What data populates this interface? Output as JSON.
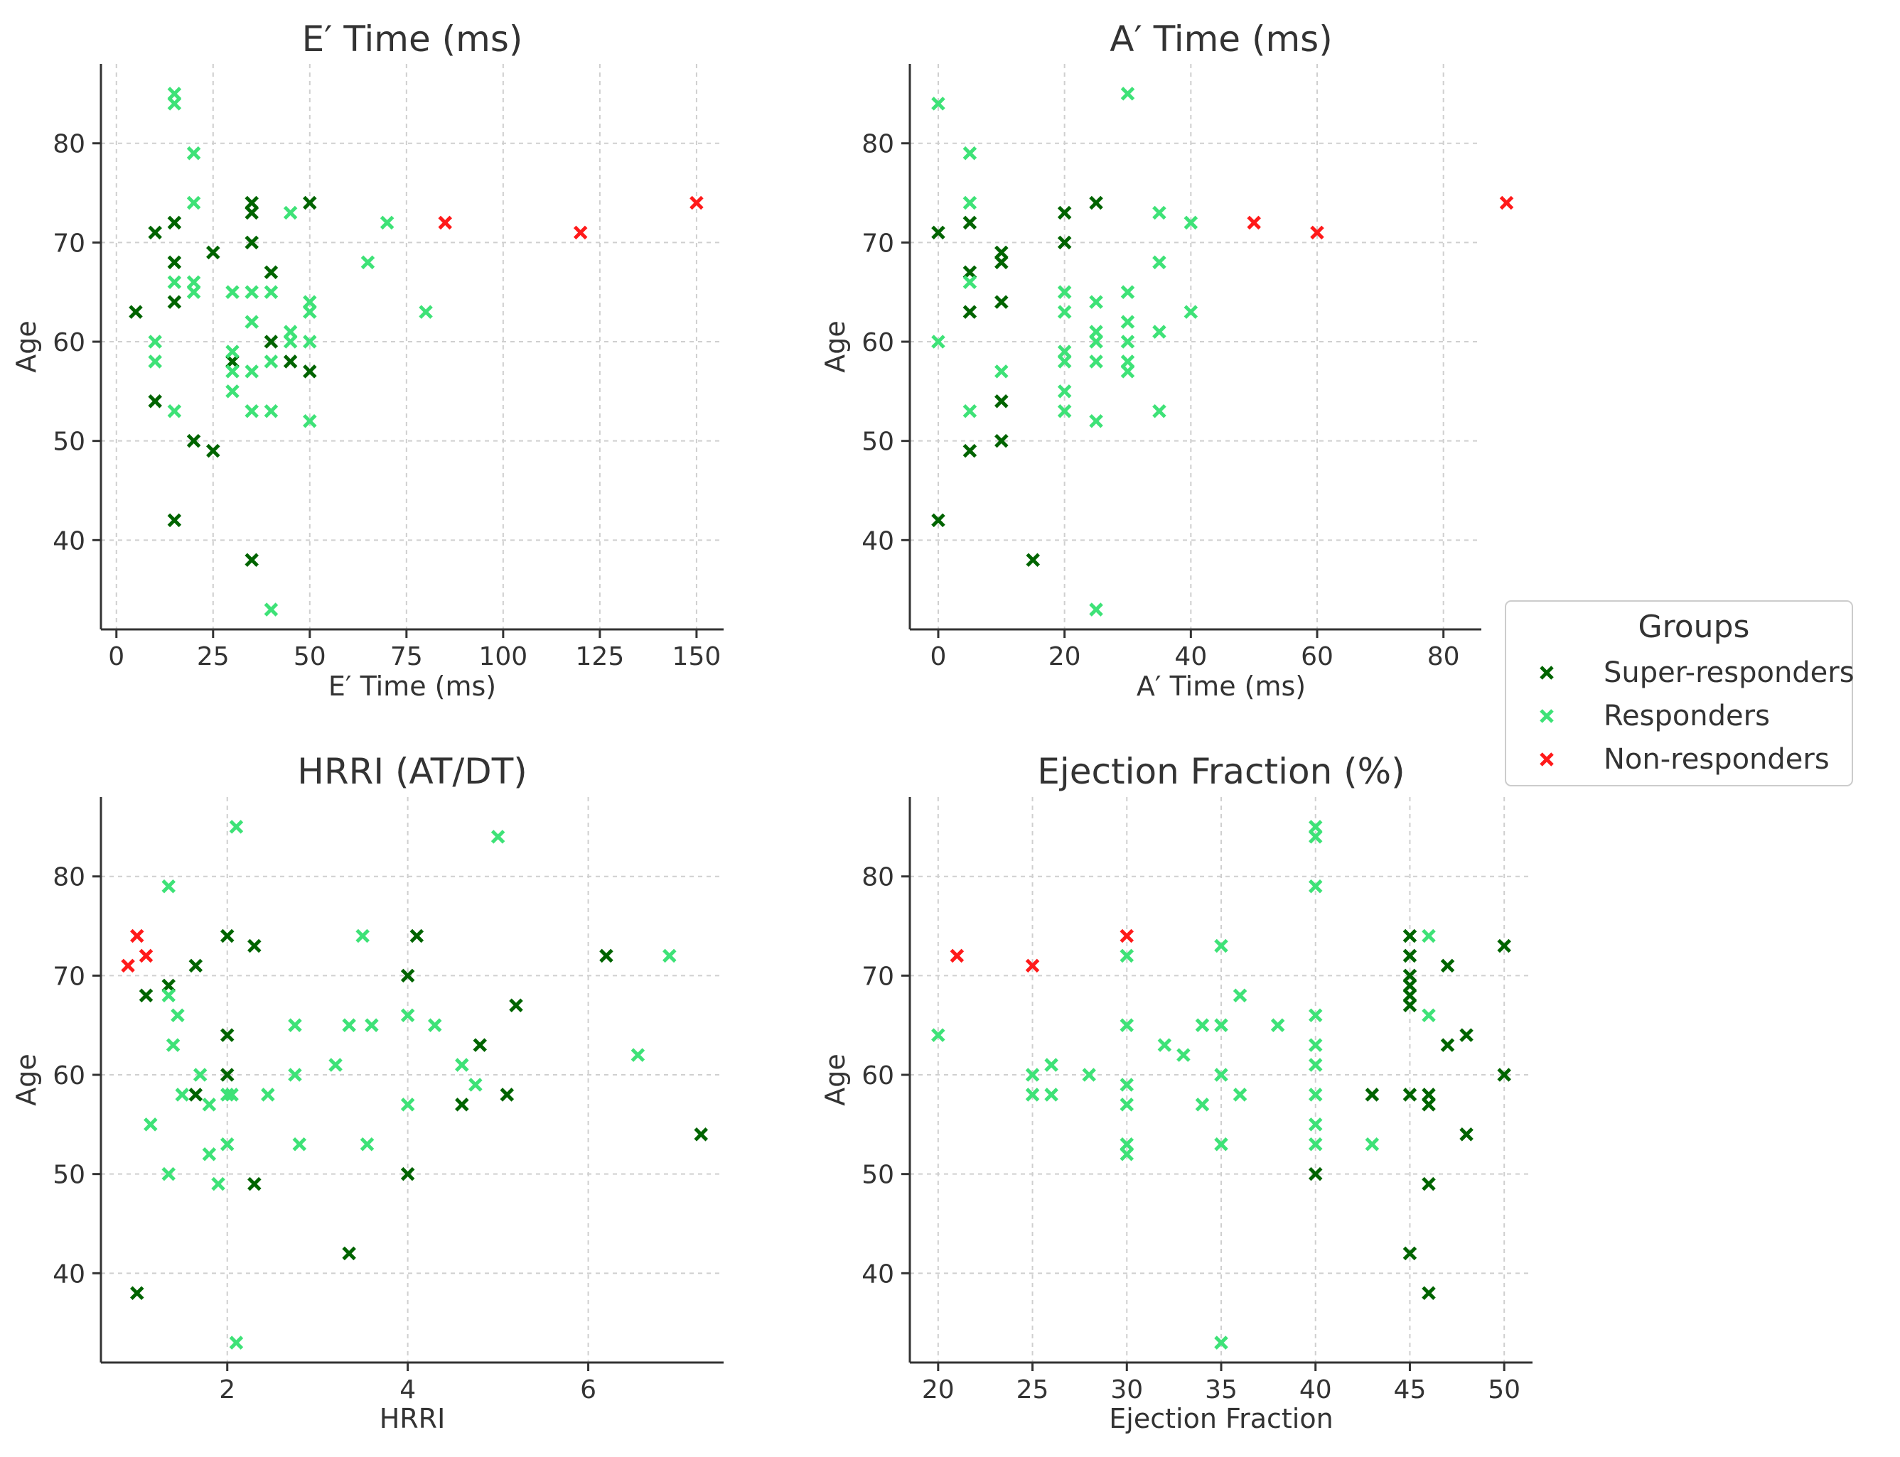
{
  "colors": {
    "Super-responders": "#006400",
    "Responders": "#3ee277",
    "Non-responders": "#ff1a1a",
    "grid": "#cfcfcf",
    "axis": "#333333"
  },
  "legend": {
    "title": "Groups",
    "entries": [
      "Super-responders",
      "Responders",
      "Non-responders"
    ]
  },
  "chart_data": [
    {
      "id": "e-time",
      "type": "scatter",
      "title": "E′ Time (ms)",
      "xlabel": "E′ Time (ms)",
      "ylabel": "Age",
      "xlim": [
        -4,
        157
      ],
      "ylim": [
        31,
        88
      ],
      "xticks": [
        0,
        25,
        50,
        75,
        100,
        125,
        150
      ],
      "yticks": [
        40,
        50,
        60,
        70,
        80
      ],
      "x_tick_labels": [
        "0",
        "25",
        "50",
        "75",
        "100",
        "125",
        "150"
      ],
      "y_tick_labels": [
        "40",
        "50",
        "60",
        "70",
        "80"
      ],
      "series": [
        {
          "name": "Super-responders",
          "points": [
            [
              5,
              63
            ],
            [
              10,
              71
            ],
            [
              10,
              54
            ],
            [
              15,
              72
            ],
            [
              15,
              68
            ],
            [
              15,
              64
            ],
            [
              15,
              42
            ],
            [
              20,
              50
            ],
            [
              25,
              69
            ],
            [
              25,
              49
            ],
            [
              30,
              58
            ],
            [
              35,
              74
            ],
            [
              35,
              73
            ],
            [
              35,
              70
            ],
            [
              35,
              38
            ],
            [
              40,
              67
            ],
            [
              40,
              60
            ],
            [
              45,
              58
            ],
            [
              50,
              74
            ],
            [
              50,
              57
            ]
          ]
        },
        {
          "name": "Responders",
          "points": [
            [
              10,
              60
            ],
            [
              10,
              58
            ],
            [
              15,
              85
            ],
            [
              15,
              84
            ],
            [
              15,
              66
            ],
            [
              15,
              53
            ],
            [
              20,
              79
            ],
            [
              20,
              74
            ],
            [
              20,
              66
            ],
            [
              20,
              65
            ],
            [
              30,
              65
            ],
            [
              30,
              59
            ],
            [
              30,
              57
            ],
            [
              30,
              55
            ],
            [
              35,
              65
            ],
            [
              35,
              62
            ],
            [
              35,
              57
            ],
            [
              35,
              53
            ],
            [
              40,
              65
            ],
            [
              40,
              58
            ],
            [
              40,
              53
            ],
            [
              40,
              33
            ],
            [
              45,
              73
            ],
            [
              45,
              61
            ],
            [
              45,
              60
            ],
            [
              50,
              64
            ],
            [
              50,
              63
            ],
            [
              50,
              60
            ],
            [
              50,
              52
            ],
            [
              65,
              68
            ],
            [
              70,
              72
            ],
            [
              80,
              63
            ]
          ]
        },
        {
          "name": "Non-responders",
          "points": [
            [
              85,
              72
            ],
            [
              120,
              71
            ],
            [
              150,
              74
            ]
          ]
        }
      ]
    },
    {
      "id": "a-time",
      "type": "scatter",
      "title": "A′ Time (ms)",
      "xlabel": "A′ Time (ms)",
      "ylabel": "Age",
      "xlim": [
        -4.5,
        86
      ],
      "ylim": [
        31,
        88
      ],
      "xticks": [
        0,
        20,
        40,
        60,
        80
      ],
      "yticks": [
        40,
        50,
        60,
        70,
        80
      ],
      "x_tick_labels": [
        "0",
        "20",
        "40",
        "60",
        "80"
      ],
      "y_tick_labels": [
        "40",
        "50",
        "60",
        "70",
        "80"
      ],
      "series": [
        {
          "name": "Super-responders",
          "points": [
            [
              0,
              71
            ],
            [
              0,
              42
            ],
            [
              5,
              72
            ],
            [
              5,
              67
            ],
            [
              5,
              63
            ],
            [
              5,
              49
            ],
            [
              10,
              69
            ],
            [
              10,
              68
            ],
            [
              10,
              64
            ],
            [
              10,
              54
            ],
            [
              10,
              50
            ],
            [
              15,
              38
            ],
            [
              20,
              73
            ],
            [
              20,
              70
            ],
            [
              25,
              74
            ]
          ]
        },
        {
          "name": "Responders",
          "points": [
            [
              0,
              84
            ],
            [
              0,
              60
            ],
            [
              5,
              79
            ],
            [
              5,
              74
            ],
            [
              5,
              66
            ],
            [
              5,
              53
            ],
            [
              10,
              57
            ],
            [
              20,
              65
            ],
            [
              20,
              63
            ],
            [
              20,
              59
            ],
            [
              20,
              58
            ],
            [
              20,
              55
            ],
            [
              20,
              53
            ],
            [
              25,
              64
            ],
            [
              25,
              61
            ],
            [
              25,
              60
            ],
            [
              25,
              58
            ],
            [
              25,
              52
            ],
            [
              25,
              33
            ],
            [
              30,
              85
            ],
            [
              30,
              65
            ],
            [
              30,
              62
            ],
            [
              30,
              60
            ],
            [
              30,
              58
            ],
            [
              30,
              57
            ],
            [
              35,
              73
            ],
            [
              35,
              68
            ],
            [
              35,
              61
            ],
            [
              35,
              53
            ],
            [
              40,
              72
            ],
            [
              40,
              63
            ]
          ]
        },
        {
          "name": "Non-responders",
          "points": [
            [
              50,
              72
            ],
            [
              60,
              71
            ],
            [
              90,
              74
            ]
          ]
        }
      ]
    },
    {
      "id": "hrri",
      "type": "scatter",
      "title": "HRRI (AT/DT)",
      "xlabel": "HRRI",
      "ylabel": "Age",
      "xlim": [
        0.6,
        7.5
      ],
      "ylim": [
        31,
        88
      ],
      "xticks": [
        2,
        4,
        6
      ],
      "yticks": [
        40,
        50,
        60,
        70,
        80
      ],
      "x_tick_labels": [
        "2",
        "4",
        "6"
      ],
      "y_tick_labels": [
        "40",
        "50",
        "60",
        "70",
        "80"
      ],
      "series": [
        {
          "name": "Super-responders",
          "points": [
            [
              1.35,
              69
            ],
            [
              1.1,
              68
            ],
            [
              1.0,
              38
            ],
            [
              1.65,
              71
            ],
            [
              1.65,
              58
            ],
            [
              2.0,
              74
            ],
            [
              2.0,
              64
            ],
            [
              2.0,
              60
            ],
            [
              2.3,
              73
            ],
            [
              2.3,
              49
            ],
            [
              3.35,
              42
            ],
            [
              4.0,
              70
            ],
            [
              4.0,
              50
            ],
            [
              4.1,
              74
            ],
            [
              4.6,
              57
            ],
            [
              4.8,
              63
            ],
            [
              5.1,
              58
            ],
            [
              5.2,
              67
            ],
            [
              6.2,
              72
            ],
            [
              7.25,
              54
            ]
          ]
        },
        {
          "name": "Responders",
          "points": [
            [
              1.35,
              79
            ],
            [
              1.35,
              68
            ],
            [
              1.35,
              50
            ],
            [
              1.4,
              63
            ],
            [
              1.45,
              66
            ],
            [
              1.5,
              58
            ],
            [
              1.15,
              55
            ],
            [
              1.7,
              60
            ],
            [
              1.8,
              57
            ],
            [
              1.8,
              52
            ],
            [
              1.9,
              49
            ],
            [
              2.0,
              58
            ],
            [
              2.0,
              53
            ],
            [
              2.05,
              58
            ],
            [
              2.1,
              85
            ],
            [
              2.1,
              33
            ],
            [
              2.45,
              58
            ],
            [
              2.75,
              65
            ],
            [
              2.75,
              60
            ],
            [
              2.8,
              53
            ],
            [
              3.2,
              61
            ],
            [
              3.35,
              65
            ],
            [
              3.5,
              74
            ],
            [
              3.55,
              53
            ],
            [
              3.6,
              65
            ],
            [
              4.0,
              66
            ],
            [
              4.0,
              57
            ],
            [
              4.3,
              65
            ],
            [
              4.6,
              61
            ],
            [
              4.75,
              59
            ],
            [
              5.0,
              84
            ],
            [
              6.55,
              62
            ],
            [
              6.9,
              72
            ]
          ]
        },
        {
          "name": "Non-responders",
          "points": [
            [
              0.9,
              71
            ],
            [
              1.0,
              74
            ],
            [
              1.1,
              72
            ]
          ]
        }
      ]
    },
    {
      "id": "ejection-fraction",
      "type": "scatter",
      "title": "Ejection Fraction (%)",
      "xlabel": "Ejection Fraction",
      "ylabel": "Age",
      "xlim": [
        18.5,
        51.5
      ],
      "ylim": [
        31,
        88
      ],
      "xticks": [
        20,
        25,
        30,
        35,
        40,
        45,
        50
      ],
      "yticks": [
        40,
        50,
        60,
        70,
        80
      ],
      "x_tick_labels": [
        "20",
        "25",
        "30",
        "35",
        "40",
        "45",
        "50"
      ],
      "y_tick_labels": [
        "40",
        "50",
        "60",
        "70",
        "80"
      ],
      "series": [
        {
          "name": "Super-responders",
          "points": [
            [
              40,
              50
            ],
            [
              43,
              58
            ],
            [
              45,
              74
            ],
            [
              45,
              72
            ],
            [
              45,
              70
            ],
            [
              45,
              69
            ],
            [
              45,
              68
            ],
            [
              45,
              67
            ],
            [
              45,
              58
            ],
            [
              45,
              42
            ],
            [
              46,
              58
            ],
            [
              46,
              57
            ],
            [
              46,
              49
            ],
            [
              46,
              38
            ],
            [
              47,
              71
            ],
            [
              47,
              63
            ],
            [
              48,
              64
            ],
            [
              48,
              54
            ],
            [
              50,
              73
            ],
            [
              50,
              60
            ]
          ]
        },
        {
          "name": "Responders",
          "points": [
            [
              20,
              64
            ],
            [
              25,
              60
            ],
            [
              25,
              58
            ],
            [
              26,
              61
            ],
            [
              26,
              58
            ],
            [
              28,
              60
            ],
            [
              30,
              72
            ],
            [
              30,
              65
            ],
            [
              30,
              59
            ],
            [
              30,
              57
            ],
            [
              30,
              53
            ],
            [
              30,
              52
            ],
            [
              32,
              63
            ],
            [
              33,
              62
            ],
            [
              34,
              65
            ],
            [
              34,
              57
            ],
            [
              35,
              73
            ],
            [
              35,
              65
            ],
            [
              35,
              60
            ],
            [
              35,
              53
            ],
            [
              35,
              33
            ],
            [
              36,
              68
            ],
            [
              36,
              58
            ],
            [
              38,
              65
            ],
            [
              40,
              85
            ],
            [
              40,
              84
            ],
            [
              40,
              79
            ],
            [
              40,
              66
            ],
            [
              40,
              63
            ],
            [
              40,
              61
            ],
            [
              40,
              58
            ],
            [
              40,
              55
            ],
            [
              40,
              53
            ],
            [
              43,
              53
            ],
            [
              46,
              74
            ],
            [
              46,
              66
            ]
          ]
        },
        {
          "name": "Non-responders",
          "points": [
            [
              21,
              72
            ],
            [
              25,
              71
            ],
            [
              30,
              74
            ]
          ]
        }
      ]
    }
  ]
}
